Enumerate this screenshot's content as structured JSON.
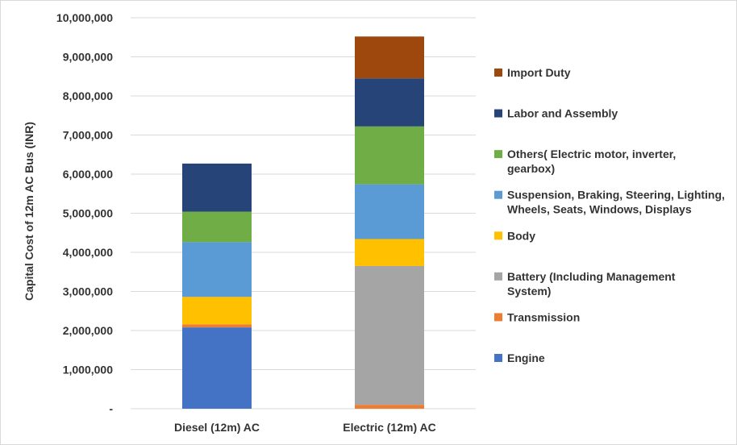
{
  "chart_data": {
    "type": "bar",
    "stacked": true,
    "categories": [
      "Diesel (12m) AC",
      "Electric (12m) AC"
    ],
    "ylabel": "Capital Cost of 12m AC Bus (INR)",
    "ylim": [
      0,
      10000000
    ],
    "yticks": [
      "-",
      "1,000,000",
      "2,000,000",
      "3,000,000",
      "4,000,000",
      "5,000,000",
      "6,000,000",
      "7,000,000",
      "8,000,000",
      "9,000,000",
      "10,000,000"
    ],
    "legend_position": "right",
    "grid": true,
    "series": [
      {
        "name": "Engine",
        "color": "#4472C4",
        "values": [
          2080000,
          0
        ]
      },
      {
        "name": "Transmission",
        "color": "#ED7D31",
        "values": [
          80000,
          100000
        ]
      },
      {
        "name": "Battery (Including Management System)",
        "color": "#A5A5A5",
        "values": [
          0,
          3550000
        ]
      },
      {
        "name": "Body",
        "color": "#FFC000",
        "values": [
          700000,
          690000
        ]
      },
      {
        "name": "Suspension, Braking, Steering, Lighting, Wheels, Seats, Windows, Displays",
        "color": "#5B9BD5",
        "values": [
          1400000,
          1400000
        ]
      },
      {
        "name": "Others( Electric motor, inverter, gearbox)",
        "color": "#70AD47",
        "values": [
          780000,
          1480000
        ]
      },
      {
        "name": "Labor and Assembly",
        "color": "#264478",
        "values": [
          1230000,
          1230000
        ]
      },
      {
        "name": "Import Duty",
        "color": "#9E480E",
        "values": [
          0,
          1070000
        ]
      }
    ],
    "legend_lines": [
      [
        "Import Duty"
      ],
      [
        "Labor and Assembly"
      ],
      [
        "Others( Electric motor, inverter,",
        "gearbox)"
      ],
      [
        "Suspension, Braking, Steering, Lighting,",
        "Wheels, Seats, Windows, Displays"
      ],
      [
        "Body"
      ],
      [
        "Battery (Including Management",
        "System)"
      ],
      [
        "Transmission"
      ],
      [
        "Engine"
      ]
    ]
  }
}
